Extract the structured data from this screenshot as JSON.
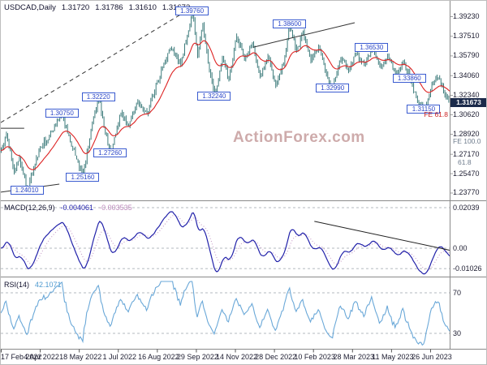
{
  "header": {
    "symbol_title": "USDCAD,Daily",
    "open": "1.31720",
    "high": "1.31786",
    "low": "1.31610",
    "close": "1.31673"
  },
  "watermark": "ActionForex.com",
  "colors": {
    "candle": "#3e7c7c",
    "ma_line": "#dd2222",
    "macd_line": "#2222aa",
    "macd_signal": "#c9a0c9",
    "rsi_line": "#6aa8d8",
    "swing_label_border": "#3a5bd0",
    "swing_label_text": "#2b46c8",
    "price_tag_bg": "#1b2a4a",
    "fib_red": "#cc2222",
    "fib_gray": "#6e7b8c",
    "grid_dash": "#9aa2aa",
    "separator": "#8a8a8a",
    "trendline": "#333333",
    "axis_text": "#1c1c30"
  },
  "chart_data": {
    "type": "candlestick",
    "symbol": "USDCAD",
    "timeframe": "Daily",
    "last_bar": {
      "open": 1.3172,
      "high": 1.31786,
      "low": 1.3161,
      "close": 1.31673
    },
    "x_axis": {
      "tick_labels": [
        "17 Feb 2022",
        "4 Apr 2022",
        "18 May 2022",
        "1 Jul 2022",
        "16 Aug 2022",
        "29 Sep 2022",
        "14 Nov 2022",
        "28 Dec 2022",
        "10 Feb 2023",
        "28 Mar 2023",
        "11 May 2023",
        "26 Jun 2023"
      ],
      "tick_days": [
        0,
        30,
        60,
        90,
        120,
        150,
        180,
        210,
        240,
        270,
        300,
        330
      ],
      "total_days": 346
    },
    "price_panel": {
      "y_axis_labels": [
        "1.39230",
        "1.37510",
        "1.35790",
        "1.34060",
        "1.32340",
        "1.30620",
        "1.28920",
        "1.27170",
        "1.25470",
        "1.23770"
      ],
      "y_range": [
        1.232,
        1.4005
      ],
      "price_anchors": [
        [
          0,
          1.275
        ],
        [
          4,
          1.289
        ],
        [
          10,
          1.256
        ],
        [
          14,
          1.269
        ],
        [
          20,
          1.2401
        ],
        [
          30,
          1.278
        ],
        [
          40,
          1.292
        ],
        [
          47,
          1.3075
        ],
        [
          53,
          1.283
        ],
        [
          63,
          1.2516
        ],
        [
          70,
          1.3
        ],
        [
          75,
          1.3222
        ],
        [
          80,
          1.29
        ],
        [
          84,
          1.2726
        ],
        [
          92,
          1.308
        ],
        [
          98,
          1.296
        ],
        [
          105,
          1.318
        ],
        [
          112,
          1.307
        ],
        [
          120,
          1.335
        ],
        [
          130,
          1.365
        ],
        [
          138,
          1.35
        ],
        [
          147,
          1.3976
        ],
        [
          151,
          1.358
        ],
        [
          155,
          1.385
        ],
        [
          159,
          1.352
        ],
        [
          164,
          1.3224
        ],
        [
          170,
          1.357
        ],
        [
          175,
          1.337
        ],
        [
          181,
          1.375
        ],
        [
          187,
          1.355
        ],
        [
          193,
          1.369
        ],
        [
          199,
          1.34
        ],
        [
          205,
          1.358
        ],
        [
          211,
          1.332
        ],
        [
          217,
          1.35
        ],
        [
          222,
          1.386
        ],
        [
          227,
          1.362
        ],
        [
          232,
          1.379
        ],
        [
          238,
          1.354
        ],
        [
          244,
          1.366
        ],
        [
          250,
          1.342
        ],
        [
          255,
          1.3299
        ],
        [
          261,
          1.356
        ],
        [
          267,
          1.345
        ],
        [
          273,
          1.36
        ],
        [
          279,
          1.35
        ],
        [
          285,
          1.3653
        ],
        [
          291,
          1.348
        ],
        [
          297,
          1.359
        ],
        [
          303,
          1.342
        ],
        [
          309,
          1.354
        ],
        [
          314,
          1.3386
        ],
        [
          320,
          1.318
        ],
        [
          325,
          1.3115
        ],
        [
          331,
          1.333
        ],
        [
          336,
          1.339
        ],
        [
          341,
          1.324
        ],
        [
          345,
          1.31673
        ]
      ],
      "swing_labels": [
        {
          "text": "1.39760",
          "day": 147,
          "price": 1.3976
        },
        {
          "text": "1.38600",
          "day": 222,
          "price": 1.386
        },
        {
          "text": "1.36530",
          "day": 285,
          "price": 1.3653
        },
        {
          "text": "1.33860",
          "day": 314,
          "price": 1.3386
        },
        {
          "text": "1.32990",
          "day": 255,
          "price": 1.3299
        },
        {
          "text": "1.32240",
          "day": 164,
          "price": 1.3224
        },
        {
          "text": "1.32220",
          "day": 75,
          "price": 1.3222
        },
        {
          "text": "1.31150",
          "day": 325,
          "price": 1.3115
        },
        {
          "text": "1.30750",
          "day": 47,
          "price": 1.3075
        },
        {
          "text": "1.27260",
          "day": 84,
          "price": 1.2726
        },
        {
          "text": "1.25160",
          "day": 63,
          "price": 1.2516
        },
        {
          "text": "1.24010",
          "day": 20,
          "price": 1.2401
        }
      ],
      "current_price": {
        "text": "1.31673",
        "value": 1.31673
      },
      "fib_labels": [
        {
          "text": "FE 61.8",
          "price": 1.3062,
          "color": "red",
          "placement": "inside",
          "x_offset": 0
        },
        {
          "text": "FE 100.0",
          "price": 1.2825,
          "color": "gray",
          "placement": "axis",
          "x_offset": 0
        },
        {
          "text": "61.8",
          "price": 1.2645,
          "color": "gray",
          "placement": "axis",
          "x_offset": 6
        }
      ],
      "trendlines": [
        {
          "points": [
            [
              0,
              1.2995
            ],
            [
              146,
              1.3995
            ]
          ],
          "style": "dashed"
        },
        {
          "points": [
            [
              0,
              1.2945
            ],
            [
              18,
              1.2945
            ]
          ],
          "style": "solid"
        },
        {
          "points": [
            [
              0,
              1.2385
            ],
            [
              45,
              1.2455
            ]
          ],
          "style": "solid"
        },
        {
          "points": [
            [
              194,
              1.3655
            ],
            [
              272,
              1.387
            ]
          ],
          "style": "solid"
        }
      ]
    },
    "macd_panel": {
      "label": "MACD(12,26,9)",
      "macd_value": "-0.004061",
      "signal_value": "-0.003535",
      "params": [
        12,
        26,
        9
      ],
      "y_axis_labels": [
        {
          "text": "0.02039",
          "value": 0.02039
        },
        {
          "text": "0.00",
          "value": 0
        },
        {
          "text": "-0.01026",
          "value": -0.01026
        }
      ],
      "trendline": {
        "points": [
          [
            241,
            0.0135
          ],
          [
            345,
            -0.001
          ]
        ],
        "style": "solid"
      }
    },
    "rsi_panel": {
      "label": "RSI(14)",
      "value": "42.1071",
      "period": 14,
      "levels": [
        70,
        30
      ]
    }
  }
}
